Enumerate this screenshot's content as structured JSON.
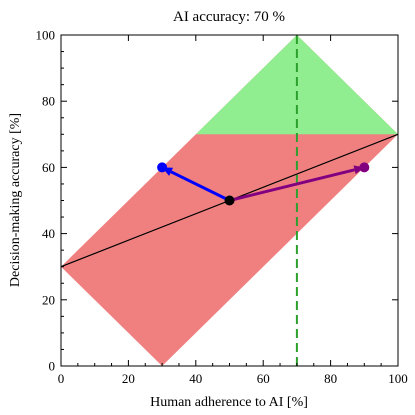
{
  "chart_data": {
    "type": "area",
    "title": "AI accuracy: 70 %",
    "xlabel": "Human adherence to AI [%]",
    "ylabel": "Decision-making accuracy [%]",
    "xlim": [
      0,
      100
    ],
    "ylim": [
      0,
      100
    ],
    "xticks": [
      0,
      20,
      40,
      60,
      80,
      100
    ],
    "yticks": [
      0,
      20,
      40,
      60,
      80,
      100
    ],
    "grid": false,
    "regions": [
      {
        "name": "red-region",
        "color": "#f08080",
        "points": [
          [
            0,
            30
          ],
          [
            30,
            0
          ],
          [
            100,
            70
          ],
          [
            70,
            100
          ]
        ]
      },
      {
        "name": "green-region",
        "color": "#90ee90",
        "points": [
          [
            40,
            70
          ],
          [
            100,
            70
          ],
          [
            70,
            100
          ]
        ]
      }
    ],
    "lines": [
      {
        "name": "baseline",
        "color": "#000000",
        "style": "solid",
        "points": [
          [
            0,
            30
          ],
          [
            100,
            70
          ]
        ]
      },
      {
        "name": "ai-accuracy-marker",
        "color": "#2ca02c",
        "style": "dashed",
        "points": [
          [
            70,
            0
          ],
          [
            70,
            100
          ]
        ]
      }
    ],
    "arrows": [
      {
        "name": "blue-arrow",
        "color": "#0000ff",
        "from": [
          50,
          50
        ],
        "to": [
          30,
          60
        ]
      },
      {
        "name": "purple-arrow",
        "color": "#800080",
        "from": [
          50,
          50
        ],
        "to": [
          90,
          60
        ]
      }
    ],
    "points": [
      {
        "name": "origin-point",
        "x": 50,
        "y": 50,
        "color": "#000000"
      },
      {
        "name": "blue-point",
        "x": 30,
        "y": 60,
        "color": "#0000ff"
      },
      {
        "name": "purple-point",
        "x": 90,
        "y": 60,
        "color": "#800080"
      }
    ]
  }
}
